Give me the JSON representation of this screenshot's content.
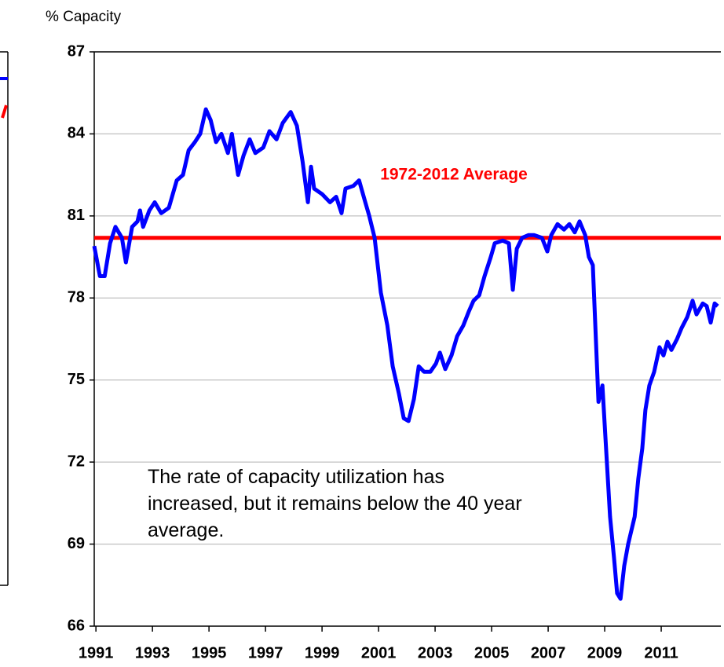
{
  "chart_data": {
    "type": "line",
    "y_axis_label": "% Capacity",
    "annotation": "The rate of capacity utilization has increased, but  it remains below the 40 year average.",
    "average": {
      "label": "1972-2012 Average",
      "value": 80.2,
      "color": "#ff0000"
    },
    "xlim": [
      1990.94,
      2013.11
    ],
    "xticks": [
      1991,
      1993,
      1995,
      1997,
      1999,
      2001,
      2003,
      2005,
      2007,
      2009,
      2011
    ],
    "ylim": [
      66,
      87
    ],
    "yticks": [
      66,
      69,
      72,
      75,
      78,
      81,
      84,
      87
    ],
    "grid": true,
    "series": [
      {
        "color": "#0000ff",
        "x": [
          1990.94,
          1991.14,
          1991.31,
          1991.5,
          1991.69,
          1991.92,
          1992.06,
          1992.28,
          1992.47,
          1992.56,
          1992.67,
          1992.89,
          1993.08,
          1993.31,
          1993.58,
          1993.86,
          1994.08,
          1994.28,
          1994.5,
          1994.69,
          1994.89,
          1995.06,
          1995.25,
          1995.44,
          1995.67,
          1995.81,
          1996.03,
          1996.22,
          1996.44,
          1996.64,
          1996.92,
          1997.14,
          1997.39,
          1997.61,
          1997.89,
          1998.11,
          1998.31,
          1998.5,
          1998.61,
          1998.72,
          1999.0,
          1999.28,
          1999.5,
          1999.69,
          1999.83,
          2000.11,
          2000.31,
          2000.53,
          2000.67,
          2000.86,
          2001.08,
          2001.31,
          2001.5,
          2001.72,
          2001.89,
          2002.06,
          2002.25,
          2002.42,
          2002.61,
          2002.83,
          2003.03,
          2003.17,
          2003.36,
          2003.58,
          2003.78,
          2004.0,
          2004.19,
          2004.36,
          2004.56,
          2004.75,
          2004.97,
          2005.11,
          2005.39,
          2005.61,
          2005.75,
          2005.89,
          2006.08,
          2006.31,
          2006.5,
          2006.78,
          2006.97,
          2007.11,
          2007.33,
          2007.56,
          2007.75,
          2007.94,
          2008.11,
          2008.31,
          2008.44,
          2008.58,
          2008.78,
          2008.92,
          2009.06,
          2009.19,
          2009.33,
          2009.44,
          2009.56,
          2009.69,
          2009.83,
          2010.06,
          2010.19,
          2010.33,
          2010.44,
          2010.58,
          2010.75,
          2010.94,
          2011.08,
          2011.22,
          2011.36,
          2011.56,
          2011.72,
          2011.92,
          2012.11,
          2012.25,
          2012.47,
          2012.61,
          2012.75,
          2012.89,
          2013.0
        ],
        "values": [
          79.9,
          78.8,
          78.8,
          80.0,
          80.6,
          80.2,
          79.3,
          80.6,
          80.8,
          81.2,
          80.6,
          81.2,
          81.5,
          81.1,
          81.3,
          82.3,
          82.5,
          83.4,
          83.7,
          84.0,
          84.9,
          84.5,
          83.7,
          84.0,
          83.3,
          84.0,
          82.5,
          83.2,
          83.8,
          83.3,
          83.5,
          84.1,
          83.8,
          84.4,
          84.8,
          84.3,
          83.0,
          81.5,
          82.8,
          82.0,
          81.8,
          81.5,
          81.7,
          81.1,
          82.0,
          82.1,
          82.3,
          81.5,
          81.0,
          80.2,
          78.2,
          77.0,
          75.5,
          74.5,
          73.6,
          73.5,
          74.3,
          75.5,
          75.3,
          75.3,
          75.6,
          76.0,
          75.4,
          75.9,
          76.6,
          77.0,
          77.5,
          77.9,
          78.1,
          78.8,
          79.5,
          80.0,
          80.1,
          80.0,
          78.3,
          79.8,
          80.2,
          80.3,
          80.3,
          80.2,
          79.7,
          80.3,
          80.7,
          80.5,
          80.7,
          80.4,
          80.8,
          80.3,
          79.5,
          79.2,
          74.2,
          74.8,
          72.3,
          70.0,
          68.5,
          67.2,
          67.0,
          68.2,
          69.0,
          70.0,
          71.4,
          72.5,
          73.9,
          74.8,
          75.3,
          76.2,
          75.9,
          76.4,
          76.1,
          76.5,
          76.9,
          77.3,
          77.9,
          77.4,
          77.8,
          77.7,
          77.1,
          77.8,
          77.7
        ]
      }
    ]
  }
}
